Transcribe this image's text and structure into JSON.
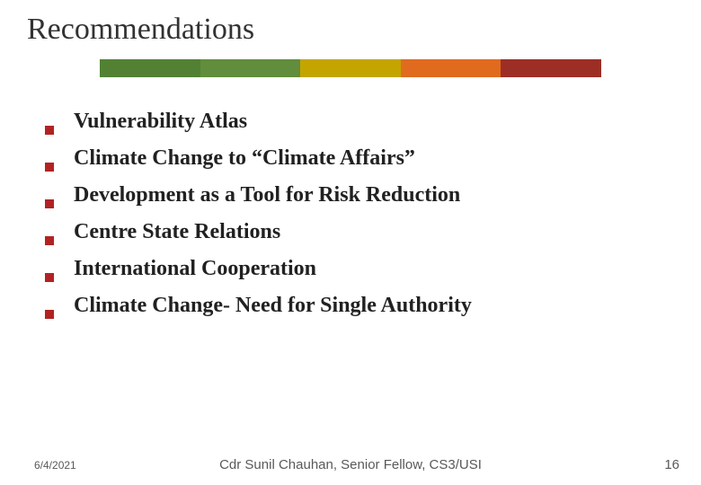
{
  "title": "Recommendations",
  "color_bar": [
    "#ffffff",
    "#528134",
    "#628d3c",
    "#c4a500",
    "#e06b1e",
    "#9d2e26",
    "#ffffff"
  ],
  "bullets": [
    "Vulnerability Atlas",
    "Climate Change to “Climate Affairs”",
    "Development as a Tool for Risk Reduction",
    "Centre State Relations",
    " International Cooperation",
    "Climate Change- Need for Single Authority"
  ],
  "bullet_color": "#b22222",
  "footer": {
    "date": "6/4/2021",
    "center": "Cdr Sunil Chauhan, Senior Fellow, CS3/USI",
    "page": "16"
  }
}
